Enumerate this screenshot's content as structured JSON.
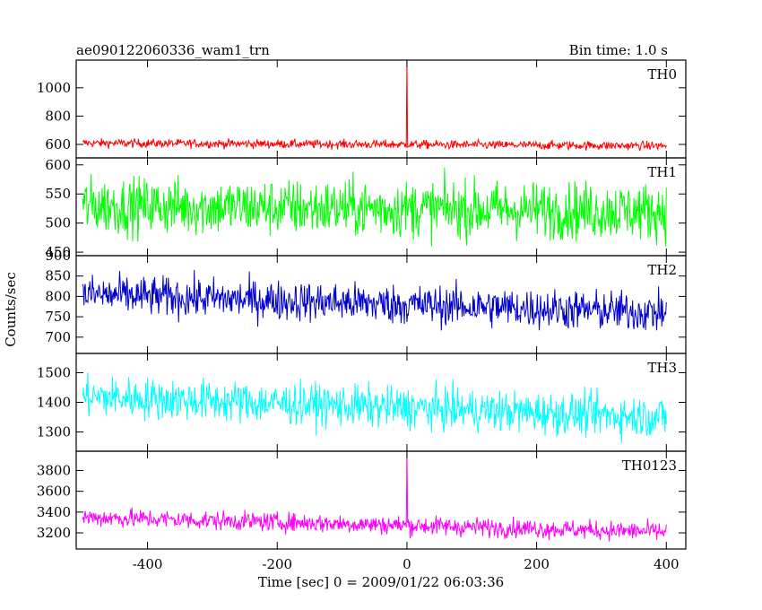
{
  "chart_data": {
    "type": "line",
    "title_left": "ae090122060336_wam1_trn",
    "title_right": "Bin time: 1.0 s",
    "xlabel": "Time [sec] 0 = 2009/01/22 06:03:36",
    "ylabel": "Counts/sec",
    "xlim": [
      -510,
      430
    ],
    "xticks": [
      -400,
      -200,
      0,
      200,
      400
    ],
    "x_range": [
      -500,
      400
    ],
    "bin_time": 1.0,
    "panels": [
      {
        "name": "TH0",
        "color": "#ff0000",
        "ylim": [
          505,
          1195
        ],
        "yticks": [
          600,
          800,
          1000
        ],
        "baseline_start": 610,
        "baseline_end": 590,
        "noise": 22,
        "spike": {
          "x": 0,
          "value": 1195
        }
      },
      {
        "name": "TH1",
        "color": "#00ff00",
        "ylim": [
          444,
          612
        ],
        "yticks": [
          450,
          500,
          550,
          600
        ],
        "baseline_start": 530,
        "baseline_end": 520,
        "noise": 35
      },
      {
        "name": "TH2",
        "color": "#0000cc",
        "ylim": [
          660,
          900
        ],
        "yticks": [
          700,
          750,
          800,
          850,
          900
        ],
        "baseline_start": 805,
        "baseline_end": 760,
        "noise": 35
      },
      {
        "name": "TH3",
        "color": "#00ffff",
        "ylim": [
          1235,
          1565
        ],
        "yticks": [
          1300,
          1400,
          1500
        ],
        "baseline_start": 1420,
        "baseline_end": 1350,
        "noise": 50
      },
      {
        "name": "TH0123",
        "color": "#ff00ff",
        "ylim": [
          3045,
          3985
        ],
        "yticks": [
          3200,
          3400,
          3600,
          3800
        ],
        "baseline_start": 3350,
        "baseline_end": 3210,
        "noise": 65,
        "spike": {
          "x": 0,
          "value": 3985
        }
      }
    ]
  }
}
